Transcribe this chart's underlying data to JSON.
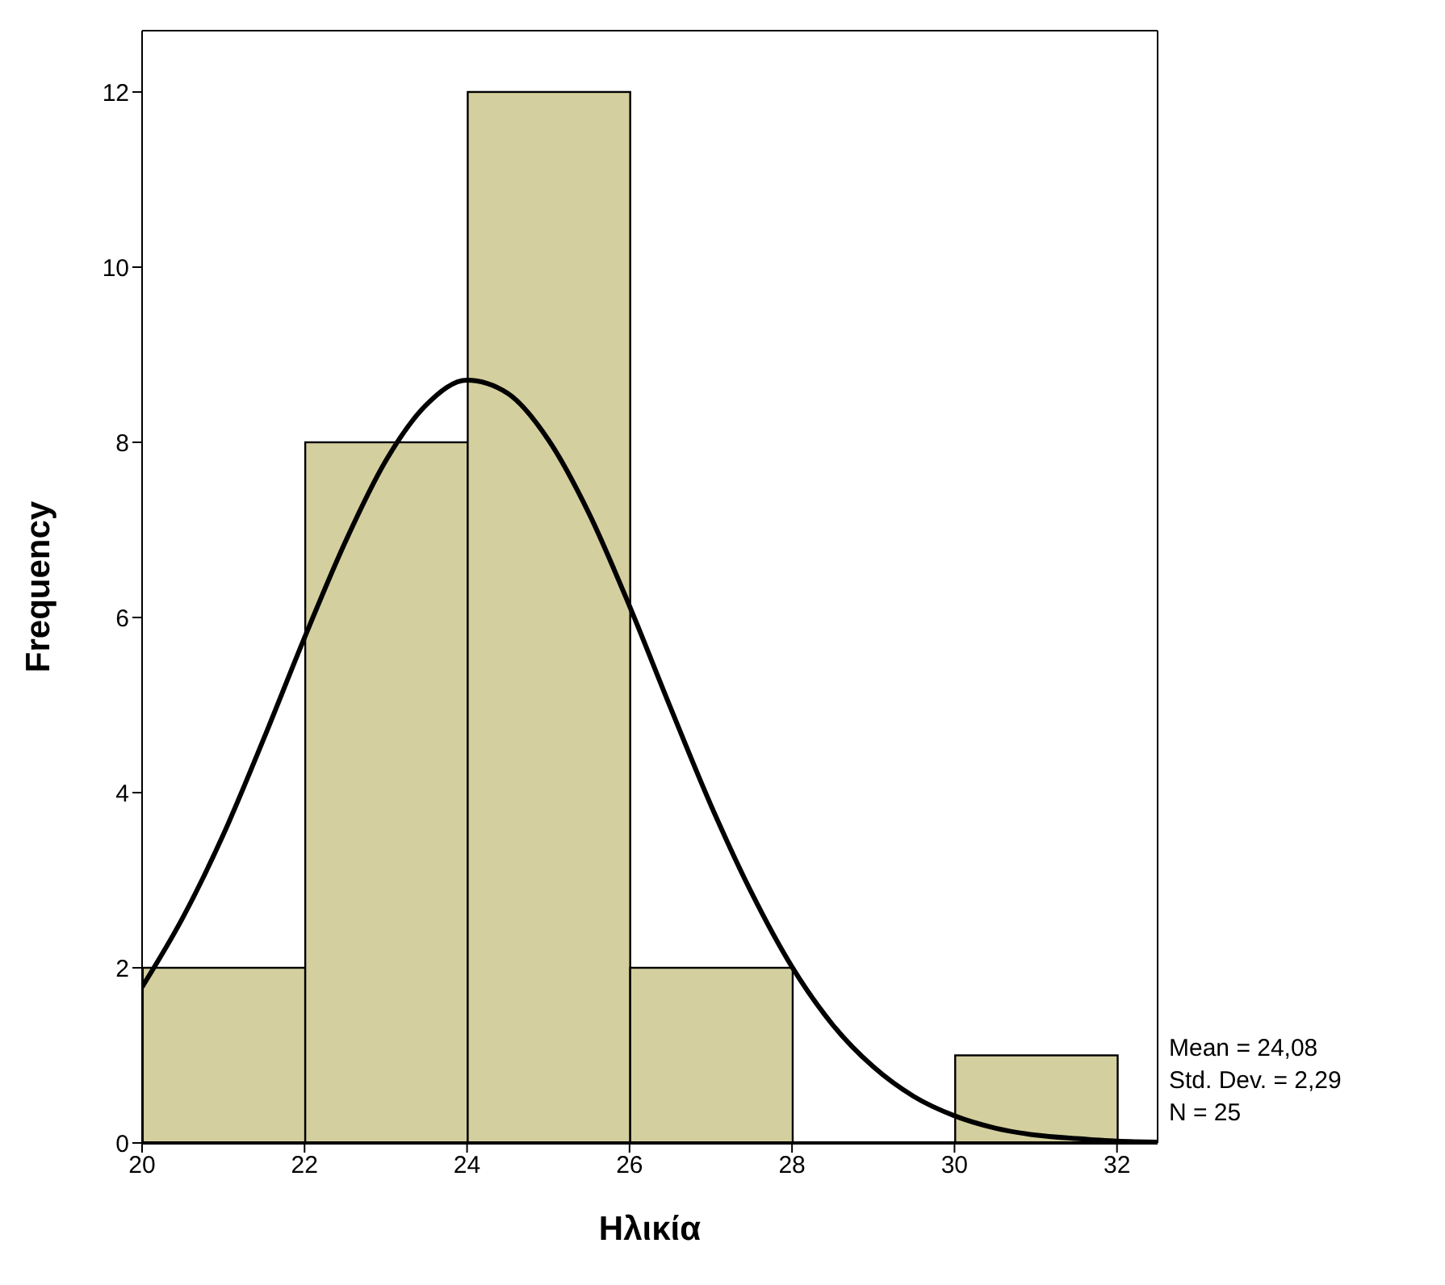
{
  "chart_data": {
    "type": "histogram",
    "xlabel": "Ηλικία",
    "ylabel": "Frequency",
    "bins": [
      20,
      22,
      24,
      26,
      28,
      30,
      32
    ],
    "values": [
      2,
      8,
      12,
      2,
      0,
      1
    ],
    "color": "#d4cf9e",
    "xlim": [
      20,
      32.5
    ],
    "xticks": [
      20,
      22,
      24,
      26,
      28,
      30,
      32
    ],
    "ylim": [
      0,
      12.7
    ],
    "yticks": [
      0,
      2,
      4,
      6,
      8,
      10,
      12
    ],
    "grid": false,
    "legend": false,
    "series": [
      {
        "type": "line",
        "color": "#000000",
        "marker": "none",
        "line_style": "solid",
        "x": [
          20,
          20.5,
          21,
          21.5,
          22,
          22.5,
          23,
          23.5,
          24,
          24.5,
          25,
          25.5,
          26,
          26.5,
          27,
          27.5,
          28,
          28.5,
          29,
          29.5,
          30,
          30.5,
          31,
          31.5,
          32,
          32.5
        ],
        "values": [
          1.78,
          2.57,
          3.52,
          4.62,
          5.77,
          6.86,
          7.79,
          8.43,
          8.71,
          8.56,
          8.03,
          7.19,
          6.13,
          4.98,
          3.86,
          2.86,
          2.01,
          1.35,
          0.87,
          0.53,
          0.31,
          0.17,
          0.09,
          0.05,
          0.02,
          0.01
        ]
      }
    ],
    "annotations": [
      "Mean = 24,08",
      "Std. Dev. = 2,29",
      "N = 25"
    ]
  }
}
